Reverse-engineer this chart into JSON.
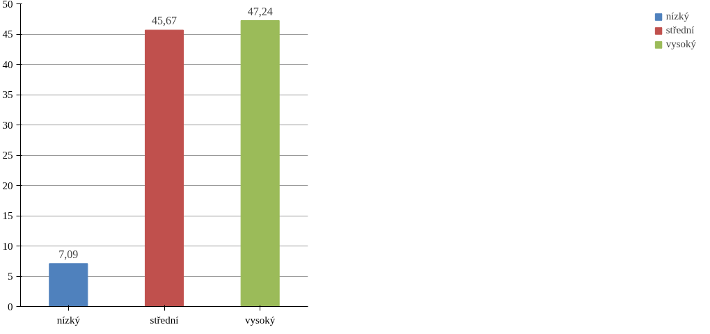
{
  "chart_data": {
    "type": "bar",
    "categories": [
      "nízký",
      "střední",
      "vysoký"
    ],
    "series": [
      {
        "name": "nízký",
        "color": "#4f81bd",
        "values": [
          7.09,
          null,
          null
        ],
        "value_labels": [
          "7,09",
          null,
          null
        ]
      },
      {
        "name": "střední",
        "color": "#c0504d",
        "values": [
          null,
          45.67,
          null
        ],
        "value_labels": [
          null,
          "45,67",
          null
        ]
      },
      {
        "name": "vysoký",
        "color": "#9bbb59",
        "values": [
          null,
          null,
          47.24
        ],
        "value_labels": [
          null,
          null,
          "47,24"
        ]
      }
    ],
    "ylim": [
      0,
      50
    ],
    "yticks": [
      0,
      5,
      10,
      15,
      20,
      25,
      30,
      35,
      40,
      45,
      50
    ],
    "grid": "y",
    "legend": "right"
  }
}
